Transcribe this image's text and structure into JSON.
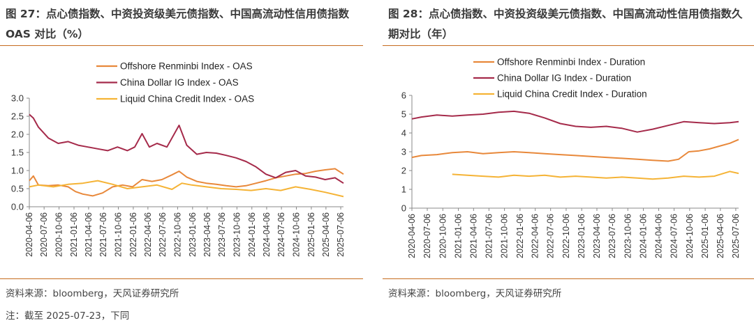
{
  "left": {
    "title": "图 27：点心债指数、中资投资级美元债指数、中国高流动性信用债指数 OAS 对比（%）",
    "source": "资料来源：bloomberg，天风证券研究所",
    "note": "注：截至 2025-07-23，下同",
    "chart_data": {
      "type": "line",
      "title": "",
      "ylim": [
        0,
        3.0
      ],
      "yticks": [
        "0.0",
        "0.5",
        "1.0",
        "1.5",
        "2.0",
        "2.5",
        "3.0"
      ],
      "x_start": "2020-04-06",
      "x_end": "2025-07-23",
      "xticks": [
        "2020-04-06",
        "2020-07-06",
        "2020-10-06",
        "2021-01-06",
        "2021-04-06",
        "2021-07-06",
        "2021-10-06",
        "2022-01-06",
        "2022-04-06",
        "2022-07-06",
        "2022-10-06",
        "2023-01-06",
        "2023-04-06",
        "2023-07-06",
        "2023-10-06",
        "2024-01-06",
        "2024-04-06",
        "2024-07-06",
        "2024-10-06",
        "2025-01-06",
        "2025-04-06",
        "2025-07-06"
      ],
      "legend_position": "top-center",
      "series": [
        {
          "name": "Offshore Renminbi Index - OAS",
          "color": "#e8883a",
          "points": [
            [
              "2020-04-06",
              0.72
            ],
            [
              "2020-05-01",
              0.85
            ],
            [
              "2020-06-01",
              0.6
            ],
            [
              "2020-08-01",
              0.58
            ],
            [
              "2020-10-01",
              0.6
            ],
            [
              "2020-12-01",
              0.55
            ],
            [
              "2021-01-15",
              0.42
            ],
            [
              "2021-03-01",
              0.35
            ],
            [
              "2021-05-01",
              0.3
            ],
            [
              "2021-07-01",
              0.38
            ],
            [
              "2021-09-01",
              0.55
            ],
            [
              "2021-11-01",
              0.6
            ],
            [
              "2022-01-01",
              0.55
            ],
            [
              "2022-03-01",
              0.75
            ],
            [
              "2022-05-01",
              0.7
            ],
            [
              "2022-07-01",
              0.75
            ],
            [
              "2022-09-01",
              0.88
            ],
            [
              "2022-10-15",
              0.98
            ],
            [
              "2022-12-01",
              0.82
            ],
            [
              "2023-02-01",
              0.7
            ],
            [
              "2023-04-01",
              0.65
            ],
            [
              "2023-06-01",
              0.62
            ],
            [
              "2023-08-01",
              0.58
            ],
            [
              "2023-10-01",
              0.55
            ],
            [
              "2023-12-01",
              0.58
            ],
            [
              "2024-02-01",
              0.65
            ],
            [
              "2024-04-01",
              0.72
            ],
            [
              "2024-06-01",
              0.8
            ],
            [
              "2024-08-01",
              0.85
            ],
            [
              "2024-10-01",
              0.9
            ],
            [
              "2024-12-01",
              0.92
            ],
            [
              "2025-02-01",
              0.98
            ],
            [
              "2025-04-01",
              1.02
            ],
            [
              "2025-06-01",
              1.05
            ],
            [
              "2025-07-23",
              0.9
            ]
          ]
        },
        {
          "name": "China Dollar IG Index - OAS",
          "color": "#a52a4a",
          "points": [
            [
              "2020-04-06",
              2.55
            ],
            [
              "2020-05-01",
              2.45
            ],
            [
              "2020-06-01",
              2.2
            ],
            [
              "2020-08-01",
              1.9
            ],
            [
              "2020-10-01",
              1.75
            ],
            [
              "2020-12-01",
              1.8
            ],
            [
              "2021-02-01",
              1.7
            ],
            [
              "2021-04-01",
              1.65
            ],
            [
              "2021-06-01",
              1.6
            ],
            [
              "2021-08-01",
              1.55
            ],
            [
              "2021-10-01",
              1.65
            ],
            [
              "2021-12-01",
              1.55
            ],
            [
              "2022-01-15",
              1.65
            ],
            [
              "2022-03-01",
              2.02
            ],
            [
              "2022-04-15",
              1.65
            ],
            [
              "2022-06-01",
              1.75
            ],
            [
              "2022-08-01",
              1.65
            ],
            [
              "2022-10-15",
              2.25
            ],
            [
              "2022-12-01",
              1.7
            ],
            [
              "2023-02-01",
              1.45
            ],
            [
              "2023-04-01",
              1.5
            ],
            [
              "2023-06-01",
              1.48
            ],
            [
              "2023-08-01",
              1.42
            ],
            [
              "2023-10-01",
              1.35
            ],
            [
              "2023-12-01",
              1.25
            ],
            [
              "2024-02-01",
              1.1
            ],
            [
              "2024-04-01",
              0.9
            ],
            [
              "2024-06-01",
              0.8
            ],
            [
              "2024-08-01",
              0.95
            ],
            [
              "2024-10-01",
              1.0
            ],
            [
              "2024-12-01",
              0.85
            ],
            [
              "2025-02-01",
              0.82
            ],
            [
              "2025-04-01",
              0.75
            ],
            [
              "2025-06-01",
              0.8
            ],
            [
              "2025-07-23",
              0.65
            ]
          ]
        },
        {
          "name": "Liquid China Credit Index - OAS",
          "color": "#f5b335",
          "points": [
            [
              "2020-04-06",
              0.55
            ],
            [
              "2020-06-01",
              0.6
            ],
            [
              "2020-09-01",
              0.55
            ],
            [
              "2020-12-01",
              0.62
            ],
            [
              "2021-03-01",
              0.65
            ],
            [
              "2021-06-01",
              0.72
            ],
            [
              "2021-09-01",
              0.62
            ],
            [
              "2021-12-01",
              0.5
            ],
            [
              "2022-03-01",
              0.55
            ],
            [
              "2022-06-01",
              0.6
            ],
            [
              "2022-09-01",
              0.48
            ],
            [
              "2022-11-01",
              0.65
            ],
            [
              "2023-01-01",
              0.6
            ],
            [
              "2023-04-01",
              0.55
            ],
            [
              "2023-07-01",
              0.5
            ],
            [
              "2023-10-01",
              0.48
            ],
            [
              "2024-01-01",
              0.45
            ],
            [
              "2024-04-01",
              0.5
            ],
            [
              "2024-07-01",
              0.45
            ],
            [
              "2024-10-01",
              0.55
            ],
            [
              "2025-01-01",
              0.48
            ],
            [
              "2025-04-01",
              0.4
            ],
            [
              "2025-07-23",
              0.28
            ]
          ]
        }
      ]
    }
  },
  "right": {
    "title": "图 28：点心债指数、中资投资级美元债指数、中国高流动性信用债指数久期对比（年）",
    "source": "资料来源：bloomberg，天风证券研究所",
    "chart_data": {
      "type": "line",
      "title": "",
      "ylim": [
        0,
        6
      ],
      "yticks": [
        "0",
        "1",
        "2",
        "3",
        "4",
        "5",
        "6"
      ],
      "x_start": "2020-04-06",
      "x_end": "2025-07-23",
      "xticks": [
        "2020-04-06",
        "2020-07-06",
        "2020-10-06",
        "2021-01-06",
        "2021-04-06",
        "2021-07-06",
        "2021-10-06",
        "2022-01-06",
        "2022-04-06",
        "2022-07-06",
        "2022-10-06",
        "2023-01-06",
        "2023-04-06",
        "2023-07-06",
        "2023-10-06",
        "2024-01-06",
        "2024-04-06",
        "2024-07-06",
        "2024-10-06",
        "2025-01-06",
        "2025-04-06",
        "2025-07-06"
      ],
      "legend_position": "top-center",
      "series": [
        {
          "name": "Offshore Renminbi Index - Duration",
          "color": "#e8883a",
          "points": [
            [
              "2020-04-06",
              2.7
            ],
            [
              "2020-06-01",
              2.8
            ],
            [
              "2020-09-01",
              2.85
            ],
            [
              "2020-12-01",
              2.95
            ],
            [
              "2021-03-01",
              3.0
            ],
            [
              "2021-06-01",
              2.9
            ],
            [
              "2021-09-01",
              2.95
            ],
            [
              "2021-12-01",
              3.0
            ],
            [
              "2022-03-01",
              2.95
            ],
            [
              "2022-06-01",
              2.9
            ],
            [
              "2022-09-01",
              2.85
            ],
            [
              "2022-12-01",
              2.8
            ],
            [
              "2023-03-01",
              2.75
            ],
            [
              "2023-06-01",
              2.7
            ],
            [
              "2023-09-01",
              2.65
            ],
            [
              "2023-12-01",
              2.6
            ],
            [
              "2024-03-01",
              2.55
            ],
            [
              "2024-06-01",
              2.5
            ],
            [
              "2024-08-01",
              2.6
            ],
            [
              "2024-10-01",
              3.0
            ],
            [
              "2024-12-01",
              3.05
            ],
            [
              "2025-02-01",
              3.15
            ],
            [
              "2025-04-01",
              3.3
            ],
            [
              "2025-06-01",
              3.45
            ],
            [
              "2025-07-23",
              3.65
            ]
          ]
        },
        {
          "name": "China Dollar IG Index - Duration",
          "color": "#a52a4a",
          "points": [
            [
              "2020-04-06",
              4.75
            ],
            [
              "2020-06-01",
              4.85
            ],
            [
              "2020-09-01",
              4.95
            ],
            [
              "2020-12-01",
              4.9
            ],
            [
              "2021-03-01",
              4.95
            ],
            [
              "2021-06-01",
              5.0
            ],
            [
              "2021-09-01",
              5.1
            ],
            [
              "2021-12-01",
              5.15
            ],
            [
              "2022-03-01",
              5.05
            ],
            [
              "2022-06-01",
              4.8
            ],
            [
              "2022-09-01",
              4.5
            ],
            [
              "2022-12-01",
              4.35
            ],
            [
              "2023-03-01",
              4.3
            ],
            [
              "2023-06-01",
              4.35
            ],
            [
              "2023-09-01",
              4.25
            ],
            [
              "2023-12-01",
              4.05
            ],
            [
              "2024-03-01",
              4.2
            ],
            [
              "2024-06-01",
              4.4
            ],
            [
              "2024-09-01",
              4.6
            ],
            [
              "2024-12-01",
              4.55
            ],
            [
              "2025-03-01",
              4.5
            ],
            [
              "2025-06-01",
              4.55
            ],
            [
              "2025-07-23",
              4.6
            ]
          ]
        },
        {
          "name": "Liquid China Credit Index - Duration",
          "color": "#f5b335",
          "points": [
            [
              "2020-12-01",
              1.8
            ],
            [
              "2021-03-01",
              1.75
            ],
            [
              "2021-06-01",
              1.7
            ],
            [
              "2021-09-01",
              1.65
            ],
            [
              "2021-12-01",
              1.75
            ],
            [
              "2022-03-01",
              1.7
            ],
            [
              "2022-06-01",
              1.75
            ],
            [
              "2022-09-01",
              1.65
            ],
            [
              "2022-12-01",
              1.7
            ],
            [
              "2023-03-01",
              1.65
            ],
            [
              "2023-06-01",
              1.6
            ],
            [
              "2023-09-01",
              1.65
            ],
            [
              "2023-12-01",
              1.6
            ],
            [
              "2024-03-01",
              1.55
            ],
            [
              "2024-06-01",
              1.6
            ],
            [
              "2024-09-01",
              1.7
            ],
            [
              "2024-12-01",
              1.65
            ],
            [
              "2025-03-01",
              1.7
            ],
            [
              "2025-06-01",
              1.95
            ],
            [
              "2025-07-23",
              1.85
            ]
          ]
        }
      ]
    }
  }
}
